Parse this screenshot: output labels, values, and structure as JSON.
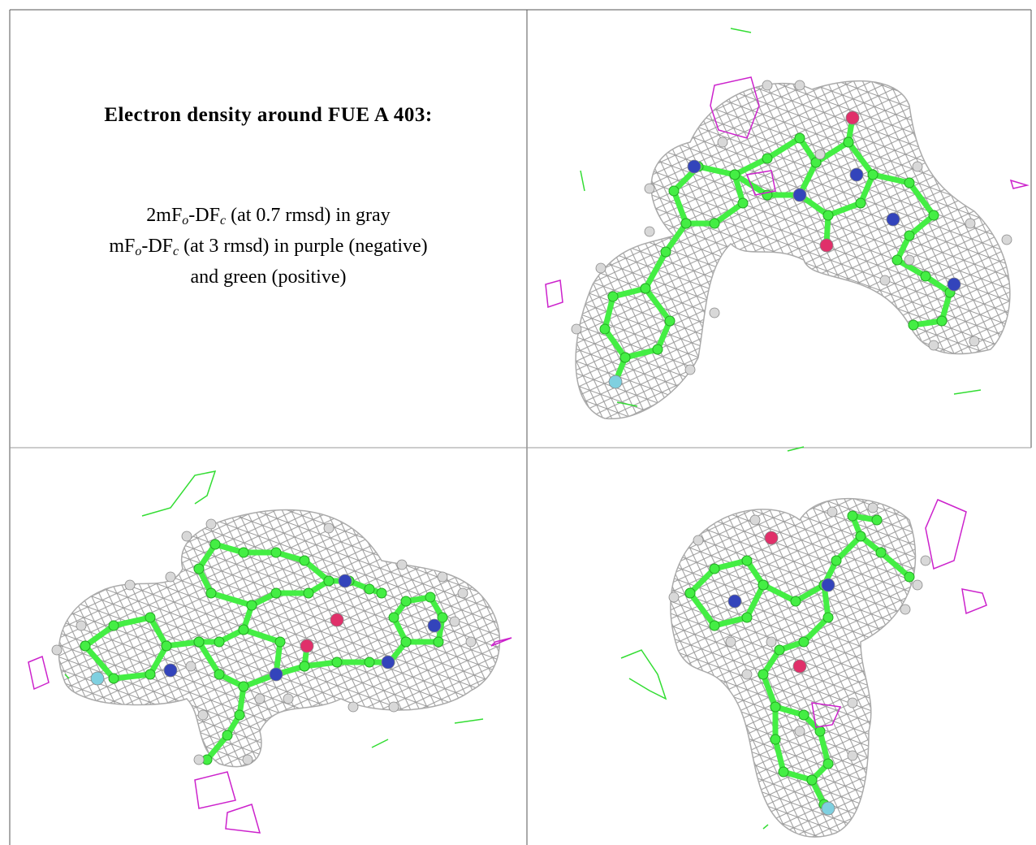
{
  "header": {
    "title": "Electron density around FUE A 403:"
  },
  "caption": {
    "lines": [
      [
        "2mF",
        "o",
        "-DF",
        "c",
        " (at 0.7 rmsd) in gray"
      ],
      [
        "mF",
        "o",
        "-DF",
        "c",
        " (at 3 rmsd) in purple (negative)"
      ],
      [
        "and green (positive)"
      ]
    ]
  }
}
